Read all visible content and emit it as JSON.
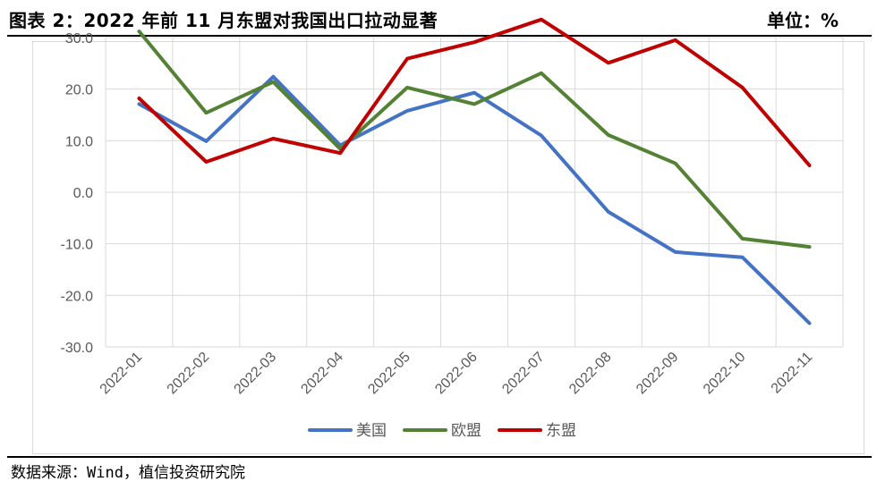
{
  "header": {
    "title": "图表 2：2022 年前 11 月东盟对我国出口拉动显著",
    "unit": "单位：%"
  },
  "footer": {
    "source": "数据来源：Wind，植信投资研究院"
  },
  "chart_data": {
    "type": "line",
    "categories": [
      "2022-01",
      "2022-02",
      "2022-03",
      "2022-04",
      "2022-05",
      "2022-06",
      "2022-07",
      "2022-08",
      "2022-09",
      "2022-10",
      "2022-11"
    ],
    "y_ticks": [
      "30.0",
      "20.0",
      "10.0",
      "0.0",
      "-10.0",
      "-20.0",
      "-30.0"
    ],
    "ylim": [
      -30,
      30
    ],
    "grid": true,
    "legend_position": "bottom",
    "series": [
      {
        "name": "美国",
        "color": "#4472C4",
        "values": [
          17.1,
          9.9,
          22.4,
          9.1,
          15.8,
          19.3,
          11.0,
          -3.8,
          -11.6,
          -12.6,
          -25.4
        ]
      },
      {
        "name": "欧盟",
        "color": "#548235",
        "values": [
          31.2,
          15.4,
          21.4,
          8.4,
          20.3,
          17.1,
          23.1,
          11.1,
          5.6,
          -9.0,
          -10.6
        ]
      },
      {
        "name": "东盟",
        "color": "#C00000",
        "values": [
          18.2,
          5.9,
          10.4,
          7.6,
          25.9,
          29.1,
          33.5,
          25.1,
          29.5,
          20.3,
          5.2
        ]
      }
    ]
  }
}
